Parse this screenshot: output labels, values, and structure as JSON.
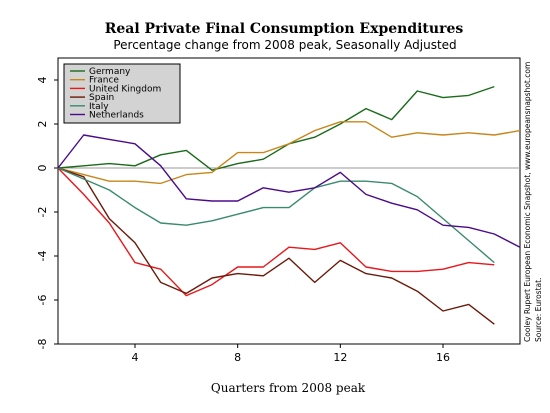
{
  "chart_data": {
    "type": "line",
    "title": "Real Private Final Consumption Expenditures",
    "subtitle": "Percentage change from 2008 peak, Seasonally Adjusted",
    "xlabel": "Quarters from 2008 peak",
    "ylabel": "",
    "xlim": [
      1,
      19
    ],
    "ylim": [
      -8,
      5
    ],
    "xticks": [
      4,
      8,
      12,
      16
    ],
    "yticks": [
      4,
      2,
      0,
      -2,
      -4,
      -6,
      -8
    ],
    "grid": false,
    "legend_position": "top-left",
    "credit": "Cooley Rupert European Economic Snapshot, www.europeansnapshot.com",
    "source": "Source: Eurostat.",
    "series": [
      {
        "name": "Germany",
        "color": "#1a6b1a",
        "x": [
          1,
          2,
          3,
          4,
          5,
          6,
          7,
          8,
          9,
          10,
          11,
          12,
          13,
          14,
          15,
          16,
          17,
          18
        ],
        "values": [
          0.0,
          0.1,
          0.2,
          0.1,
          0.6,
          0.8,
          -0.1,
          0.2,
          0.4,
          1.1,
          1.4,
          2.0,
          2.7,
          2.2,
          3.5,
          3.2,
          3.3,
          3.7
        ]
      },
      {
        "name": "France",
        "color": "#c8861a",
        "x": [
          1,
          2,
          3,
          4,
          5,
          6,
          7,
          8,
          9,
          10,
          11,
          12,
          13,
          14,
          15,
          16,
          17,
          18,
          19
        ],
        "values": [
          0.0,
          -0.3,
          -0.6,
          -0.6,
          -0.7,
          -0.3,
          -0.2,
          0.7,
          0.7,
          1.1,
          1.7,
          2.1,
          2.1,
          1.4,
          1.6,
          1.5,
          1.6,
          1.5,
          1.7
        ]
      },
      {
        "name": "United Kingdom",
        "color": "#e8171b",
        "x": [
          1,
          2,
          3,
          4,
          5,
          6,
          7,
          8,
          9,
          10,
          11,
          12,
          13,
          14,
          15,
          16,
          17,
          18
        ],
        "values": [
          0.0,
          -1.2,
          -2.5,
          -4.3,
          -4.6,
          -5.8,
          -5.3,
          -4.5,
          -4.5,
          -3.6,
          -3.7,
          -3.4,
          -4.5,
          -4.7,
          -4.7,
          -4.6,
          -4.3,
          -4.4
        ]
      },
      {
        "name": "Spain",
        "color": "#6b1a0a",
        "x": [
          1,
          2,
          3,
          4,
          5,
          6,
          7,
          8,
          9,
          10,
          11,
          12,
          13,
          14,
          15,
          16,
          17,
          18
        ],
        "values": [
          0.0,
          -0.4,
          -2.3,
          -3.4,
          -5.2,
          -5.7,
          -5.0,
          -4.8,
          -4.9,
          -4.1,
          -5.2,
          -4.2,
          -4.8,
          -5.0,
          -5.6,
          -6.5,
          -6.2,
          -7.1
        ]
      },
      {
        "name": "Italy",
        "color": "#3a8a6e",
        "x": [
          1,
          2,
          3,
          4,
          5,
          6,
          7,
          8,
          9,
          10,
          11,
          12,
          13,
          14,
          15,
          16,
          17,
          18
        ],
        "values": [
          0.0,
          -0.5,
          -1.0,
          -1.8,
          -2.5,
          -2.6,
          -2.4,
          -2.1,
          -1.8,
          -1.8,
          -0.9,
          -0.6,
          -0.6,
          -0.7,
          -1.3,
          -2.3,
          -3.3,
          -4.3
        ]
      },
      {
        "name": "Netherlands",
        "color": "#4b0a8a",
        "x": [
          1,
          2,
          3,
          4,
          5,
          6,
          7,
          8,
          9,
          10,
          11,
          12,
          13,
          14,
          15,
          16,
          17,
          18,
          19
        ],
        "values": [
          0.0,
          1.5,
          1.3,
          1.1,
          0.1,
          -1.4,
          -1.5,
          -1.5,
          -0.9,
          -1.1,
          -0.9,
          -0.2,
          -1.2,
          -1.6,
          -1.9,
          -2.6,
          -2.7,
          -3.0,
          -3.6
        ]
      }
    ]
  }
}
